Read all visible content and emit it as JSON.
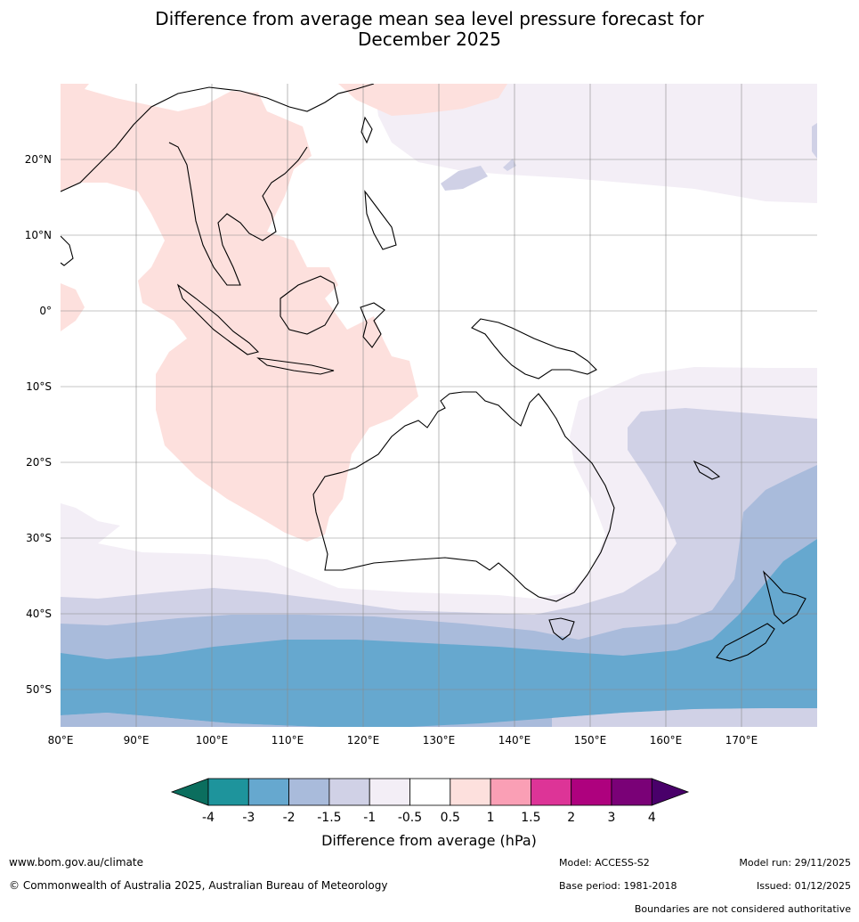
{
  "title": {
    "line1": "Difference from average mean sea level pressure forecast for",
    "line2": "December 2025"
  },
  "map": {
    "lat_ticks": [
      "20°N",
      "10°N",
      "0°",
      "10°S",
      "20°S",
      "30°S",
      "40°S",
      "50°S"
    ],
    "lon_ticks": [
      "80°E",
      "90°E",
      "100°E",
      "110°E",
      "120°E",
      "130°E",
      "140°E",
      "150°E",
      "160°E",
      "170°E"
    ],
    "colors": {
      "below_neg4": "#0b6e5e",
      "neg4_neg3": "#1e949c",
      "neg3_neg2": "#66a8cf",
      "neg2_neg1_5": "#a9bbdb",
      "neg1_5_neg1": "#d0d1e6",
      "neg1_neg0_5": "#f3eef6",
      "neg0_5_0_5": "#ffffff",
      "pos0_5_1": "#fde0dd",
      "pos1_1_5": "#fa9fb5",
      "pos1_5_2": "#dd3497",
      "pos2_3": "#ae017e",
      "pos3_4": "#7a0177",
      "above_4": "#49006a"
    }
  },
  "colorbar": {
    "labels": [
      "-4",
      "-3",
      "-2",
      "-1.5",
      "-1",
      "-0.5",
      "0.5",
      "1",
      "1.5",
      "2",
      "3",
      "4"
    ],
    "title": "Difference from average (hPa)"
  },
  "footer": {
    "website": "www.bom.gov.au/climate",
    "copyright": "© Commonwealth of Australia 2025, Australian Bureau of Meteorology",
    "model": "Model: ACCESS-S2",
    "base_period": "Base period: 1981-2018",
    "model_run": "Model run: 29/11/2025",
    "issued": "Issued: 01/12/2025",
    "disclaimer": "Boundaries are not considered authoritative"
  }
}
